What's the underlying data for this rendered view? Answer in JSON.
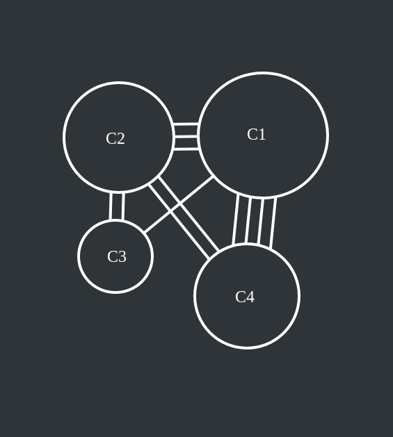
{
  "colors": {
    "background": "#2e3437",
    "stroke": "#ffffff",
    "label": "#ffffff"
  },
  "diagram": {
    "type": "multigraph",
    "nodes": [
      {
        "id": "C1",
        "label": "C1"
      },
      {
        "id": "C2",
        "label": "C2"
      },
      {
        "id": "C3",
        "label": "C3"
      },
      {
        "id": "C4",
        "label": "C4"
      }
    ],
    "edges": [
      {
        "from": "C1",
        "to": "C2",
        "multiplicity": 3
      },
      {
        "from": "C1",
        "to": "C4",
        "multiplicity": 4
      },
      {
        "from": "C1",
        "to": "C3",
        "multiplicity": 1
      },
      {
        "from": "C2",
        "to": "C3",
        "multiplicity": 2
      },
      {
        "from": "C2",
        "to": "C4",
        "multiplicity": 2
      }
    ]
  }
}
